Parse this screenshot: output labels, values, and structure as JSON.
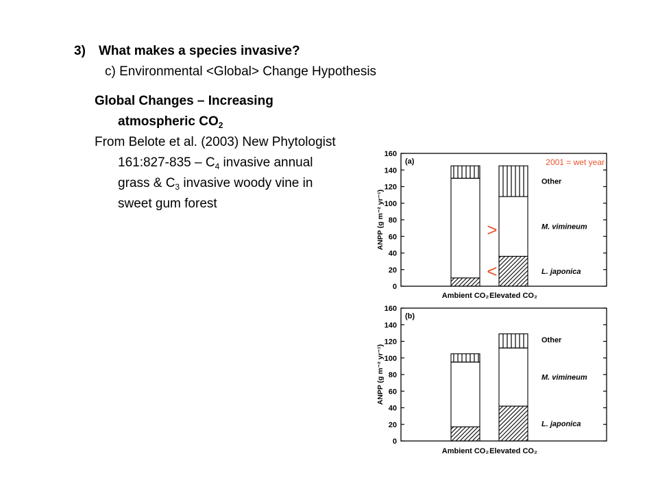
{
  "slide": {
    "heading_number": "3)",
    "heading_text": "What makes a species invasive?",
    "subheading": "c) Environmental <Global> Change Hypothesis",
    "topic_line1": "Global Changes – Increasing",
    "topic_line2_text": "atmospheric CO",
    "topic_line2_sub": "2",
    "source_line1": "From Belote et al. (2003) New Phytologist",
    "source_line2_pre": "161:827-835 – C",
    "source_line2_sub": "4",
    "source_line2_post": " invasive annual",
    "source_line3_pre": "grass & C",
    "source_line3_sub": "3",
    "source_line3_post": " invasive woody vine in",
    "source_line4": "sweet gum forest"
  },
  "annotations": {
    "wet_year_note": "2001 = wet year",
    "greater_than": ">",
    "less_than": "<",
    "color": "#e8542a"
  },
  "chart_data": [
    {
      "type": "bar",
      "stacked": true,
      "panel_label": "(a)",
      "ylabel": "ANPP (g m⁻² yr⁻¹)",
      "ylim": [
        0,
        160
      ],
      "yticks": [
        0,
        20,
        40,
        60,
        80,
        100,
        120,
        140,
        160
      ],
      "categories": [
        "Ambient CO₂",
        "Elevated CO₂"
      ],
      "series": [
        {
          "name": "L. japonica",
          "pattern": "diagonal",
          "values": [
            10,
            36
          ]
        },
        {
          "name": "M. vimineum",
          "pattern": "none",
          "values": [
            120,
            72
          ]
        },
        {
          "name": "Other",
          "pattern": "vertical",
          "values": [
            15,
            37
          ]
        }
      ]
    },
    {
      "type": "bar",
      "stacked": true,
      "panel_label": "(b)",
      "ylabel": "ANPP (g m⁻² yr⁻¹)",
      "ylim": [
        0,
        160
      ],
      "yticks": [
        0,
        20,
        40,
        60,
        80,
        100,
        120,
        140,
        160
      ],
      "categories": [
        "Ambient CO₂",
        "Elevated CO₂"
      ],
      "series": [
        {
          "name": "L. japonica",
          "pattern": "diagonal",
          "values": [
            17,
            42
          ]
        },
        {
          "name": "M. vimineum",
          "pattern": "none",
          "values": [
            78,
            70
          ]
        },
        {
          "name": "Other",
          "pattern": "vertical",
          "values": [
            10,
            17
          ]
        }
      ]
    }
  ]
}
